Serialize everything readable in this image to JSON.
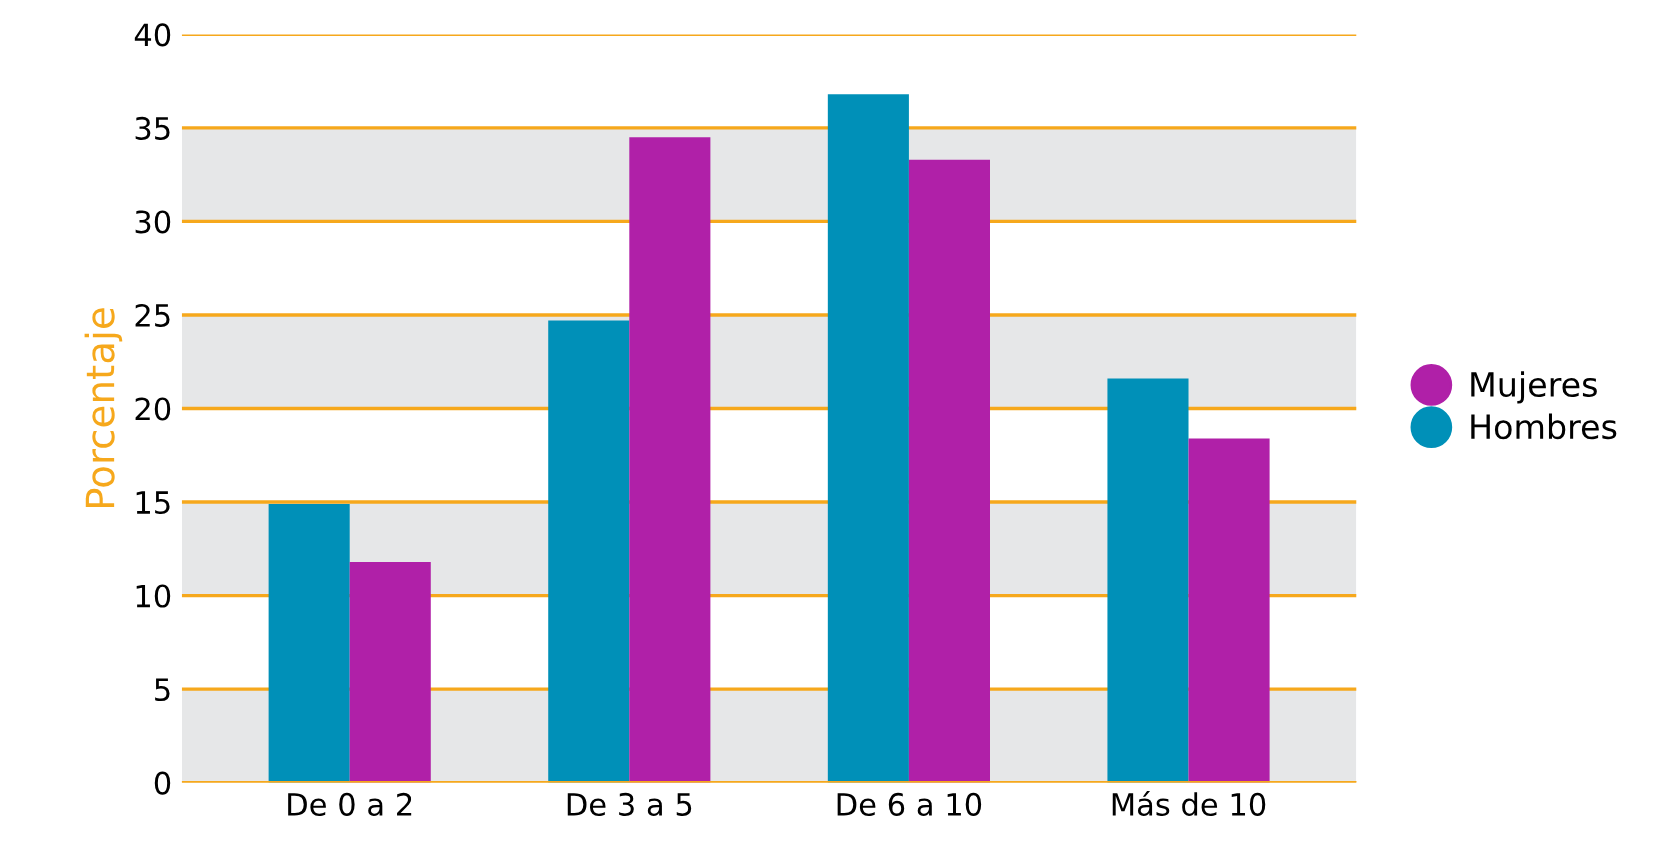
{
  "chart_data": {
    "type": "bar",
    "ylabel": "Porcentaje",
    "categories": [
      "De 0 a 2",
      "De 3 a 5",
      "De 6 a 10",
      "Más de 10"
    ],
    "series": [
      {
        "name": "Hombres",
        "color": "#0090b8",
        "values": [
          14.9,
          24.7,
          36.8,
          21.6
        ]
      },
      {
        "name": "Mujeres",
        "color": "#b020a8",
        "values": [
          11.8,
          34.5,
          33.3,
          18.4
        ]
      }
    ],
    "ylim": [
      0,
      40
    ],
    "yticks": [
      0,
      5,
      10,
      15,
      20,
      25,
      30,
      35,
      40
    ],
    "grid": "y",
    "legend": "right",
    "marker": "circle",
    "bands": [
      {
        "axis": "y",
        "from": 0,
        "to": 5,
        "color": "#e6e7e8"
      },
      {
        "axis": "y",
        "from": 10,
        "to": 15,
        "color": "#e6e7e8"
      },
      {
        "axis": "y",
        "from": 20,
        "to": 25,
        "color": "#e6e7e8"
      },
      {
        "axis": "y",
        "from": 30,
        "to": 35,
        "color": "#e6e7e8"
      }
    ]
  }
}
